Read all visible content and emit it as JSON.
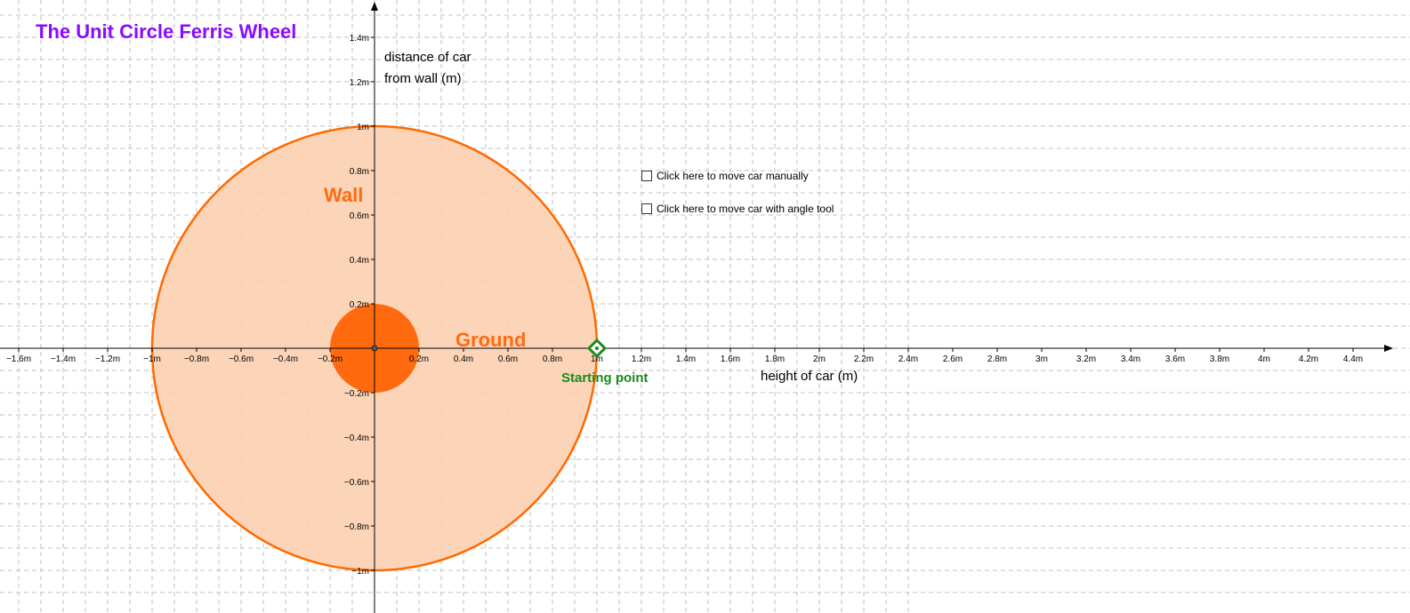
{
  "title": "The Unit Circle Ferris Wheel",
  "colors": {
    "title": "#8a0aff",
    "circle_stroke": "#ff6a00",
    "circle_fill": "#fcd0b0",
    "hub_fill": "#ff6a0e",
    "label_orange": "#ff6a0e",
    "start_point": "#1a8a1a",
    "grid": "#c0c0c0",
    "axis": "#000000"
  },
  "labels": {
    "wall": "Wall",
    "ground": "Ground",
    "starting_point": "Starting point",
    "y_axis": [
      "distance of car",
      "from wall (m)"
    ],
    "x_axis": "height of car (m)"
  },
  "checkboxes": [
    {
      "label": "Click here to move car manually",
      "checked": false
    },
    {
      "label": "Click here to move car with angle tool",
      "checked": false
    }
  ],
  "axes": {
    "x_ticks": [
      "−1.6m",
      "−1.4m",
      "−1.2m",
      "−1m",
      "−0.8m",
      "−0.6m",
      "−0.4m",
      "−0.2m",
      "0.2m",
      "0.4m",
      "0.6m",
      "0.8m",
      "1m",
      "1.2m",
      "1.4m",
      "1.6m",
      "1.8m",
      "2m",
      "2.2m",
      "2.4m",
      "2.6m",
      "2.8m",
      "3m",
      "3.2m",
      "3.4m",
      "3.6m",
      "3.8m",
      "4m",
      "4.2m",
      "4.4m"
    ],
    "x_values": [
      -1.6,
      -1.4,
      -1.2,
      -1,
      -0.8,
      -0.6,
      -0.4,
      -0.2,
      0.2,
      0.4,
      0.6,
      0.8,
      1,
      1.2,
      1.4,
      1.6,
      1.8,
      2,
      2.2,
      2.4,
      2.6,
      2.8,
      3,
      3.2,
      3.4,
      3.6,
      3.8,
      4,
      4.2,
      4.4
    ],
    "y_ticks": [
      "1.4m",
      "1.2m",
      "1m",
      "0.8m",
      "0.6m",
      "0.4m",
      "0.2m",
      "−0.2m",
      "−0.4m",
      "−0.6m",
      "−0.8m",
      "−1m"
    ],
    "y_values": [
      1.4,
      1.2,
      1,
      0.8,
      0.6,
      0.4,
      0.2,
      -0.2,
      -0.4,
      -0.6,
      -0.8,
      -1
    ],
    "grid": true
  },
  "wheel": {
    "center": [
      0,
      0
    ],
    "radius": 1,
    "hub_radius": 0.2
  },
  "starting_point": [
    1,
    0
  ]
}
